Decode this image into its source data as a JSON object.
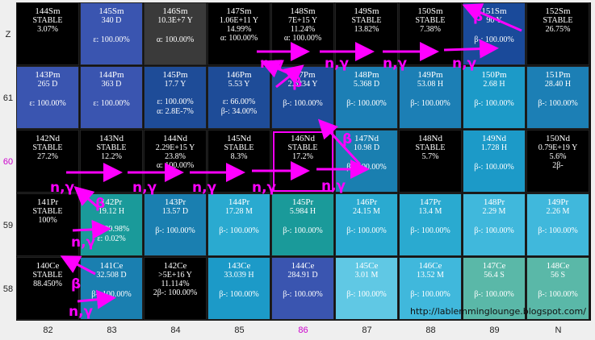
{
  "z_labels": [
    "Z",
    "61",
    "60",
    "59",
    "58"
  ],
  "n_labels": [
    "82",
    "83",
    "84",
    "85",
    "86",
    "87",
    "88",
    "89",
    "N"
  ],
  "url": "http://lablemminglounge.blogspot.com/",
  "colors": {
    "accent": "#ff00ff",
    "highlight_z": "#cc00cc"
  },
  "rows": [
    [
      {
        "name": "144Sm",
        "half": "STABLE",
        "extra": "3.07%",
        "decay": "",
        "bg": "#000000"
      },
      {
        "name": "145Sm",
        "half": "340 D",
        "extra": "",
        "decay": "ε: 100.00%",
        "bg": "#3a55b0"
      },
      {
        "name": "146Sm",
        "half": "10.3E+7 Y",
        "extra": "",
        "decay": "α: 100.00%",
        "bg": "#3a3a3a"
      },
      {
        "name": "147Sm",
        "half": "1.06E+11 Y",
        "extra": "14.99%",
        "decay": "α: 100.00%",
        "bg": "#000000"
      },
      {
        "name": "148Sm",
        "half": "7E+15 Y",
        "extra": "11.24%",
        "decay": "α: 100.00%",
        "bg": "#000000"
      },
      {
        "name": "149Sm",
        "half": "STABLE",
        "extra": "13.82%",
        "decay": "",
        "bg": "#000000"
      },
      {
        "name": "150Sm",
        "half": "STABLE",
        "extra": "7.38%",
        "decay": "",
        "bg": "#000000"
      },
      {
        "name": "151Sm",
        "half": "90 Y",
        "extra": "",
        "decay": "β-: 100.00%",
        "bg": "#1a4a9a"
      },
      {
        "name": "152Sm",
        "half": "STABLE",
        "extra": "26.75%",
        "decay": "",
        "bg": "#000000"
      }
    ],
    [
      {
        "name": "143Pm",
        "half": "265 D",
        "extra": "",
        "decay": "ε: 100.00%",
        "bg": "#3a55b0"
      },
      {
        "name": "144Pm",
        "half": "363 D",
        "extra": "",
        "decay": "ε: 100.00%",
        "bg": "#3a55b0"
      },
      {
        "name": "145Pm",
        "half": "17.7 Y",
        "extra": "",
        "decay": "ε: 100.00%",
        "decay2": "α: 2.8E-7%",
        "bg": "#1e4c98"
      },
      {
        "name": "146Pm",
        "half": "5.53 Y",
        "extra": "",
        "decay": "ε: 66.00%",
        "decay2": "β-: 34.00%",
        "bg": "#1e4c98"
      },
      {
        "name": "147Pm",
        "half": "2.6234 Y",
        "extra": "",
        "decay": "β-: 100.00%",
        "bg": "#1e4c98"
      },
      {
        "name": "148Pm",
        "half": "5.368 D",
        "extra": "",
        "decay": "β-: 100.00%",
        "bg": "#1c7fb5"
      },
      {
        "name": "149Pm",
        "half": "53.08 H",
        "extra": "",
        "decay": "β-: 100.00%",
        "bg": "#1c7fb5"
      },
      {
        "name": "150Pm",
        "half": "2.68 H",
        "extra": "",
        "decay": "β-: 100.00%",
        "bg": "#1c9ac8"
      },
      {
        "name": "151Pm",
        "half": "28.40 H",
        "extra": "",
        "decay": "β-: 100.00%",
        "bg": "#1c7fb5"
      }
    ],
    [
      {
        "name": "142Nd",
        "half": "STABLE",
        "extra": "27.2%",
        "decay": "",
        "bg": "#000000"
      },
      {
        "name": "143Nd",
        "half": "STABLE",
        "extra": "12.2%",
        "decay": "",
        "bg": "#000000"
      },
      {
        "name": "144Nd",
        "half": "2.29E+15 Y",
        "extra": "23.8%",
        "decay": "α: 100.00%",
        "bg": "#000000"
      },
      {
        "name": "145Nd",
        "half": "STABLE",
        "extra": "8.3%",
        "decay": "",
        "bg": "#000000"
      },
      {
        "name": "146Nd",
        "half": "STABLE",
        "extra": "17.2%",
        "decay": "",
        "bg": "#000000"
      },
      {
        "name": "147Nd",
        "half": "10.98 D",
        "extra": "",
        "decay": "β-: 100.00%",
        "bg": "#1a7fb0"
      },
      {
        "name": "148Nd",
        "half": "STABLE",
        "extra": "5.7%",
        "decay": "",
        "bg": "#000000"
      },
      {
        "name": "149Nd",
        "half": "1.728 H",
        "extra": "",
        "decay": "β-: 100.00%",
        "bg": "#1c9ac8"
      },
      {
        "name": "150Nd",
        "half": "0.79E+19 Y",
        "extra": "5.6%",
        "decay": "2β-",
        "bg": "#000000"
      }
    ],
    [
      {
        "name": "141Pr",
        "half": "STABLE",
        "extra": "100%",
        "decay": "",
        "bg": "#000000"
      },
      {
        "name": "142Pr",
        "half": "19.12 H",
        "extra": "",
        "decay": "β-: 99.98%",
        "decay2": "ε: 0.02%",
        "bg": "#1a9a9a"
      },
      {
        "name": "143Pr",
        "half": "13.57 D",
        "extra": "",
        "decay": "β-: 100.00%",
        "bg": "#1a7fb0"
      },
      {
        "name": "144Pr",
        "half": "17.28 M",
        "extra": "",
        "decay": "β-: 100.00%",
        "bg": "#2aaad0"
      },
      {
        "name": "145Pr",
        "half": "5.984 H",
        "extra": "",
        "decay": "β-: 100.00%",
        "bg": "#1a9a9a"
      },
      {
        "name": "146Pr",
        "half": "24.15 M",
        "extra": "",
        "decay": "β-: 100.00%",
        "bg": "#2aaad0"
      },
      {
        "name": "147Pr",
        "half": "13.4 M",
        "extra": "",
        "decay": "β-: 100.00%",
        "bg": "#2aaad0"
      },
      {
        "name": "148Pr",
        "half": "2.29 M",
        "extra": "",
        "decay": "β-: 100.00%",
        "bg": "#40b8dc"
      },
      {
        "name": "149Pr",
        "half": "2.26 M",
        "extra": "",
        "decay": "β-: 100.00%",
        "bg": "#40b8dc"
      }
    ],
    [
      {
        "name": "140Ce",
        "half": "STABLE",
        "extra": "88.450%",
        "decay": "",
        "bg": "#000000"
      },
      {
        "name": "141Ce",
        "half": "32.508 D",
        "extra": "",
        "decay": "β-: 100.00%",
        "bg": "#1a7fb0"
      },
      {
        "name": "142Ce",
        "half": ">5E+16 Y",
        "extra": "11.114%",
        "decay": "2β-: 100.00%",
        "bg": "#000000"
      },
      {
        "name": "143Ce",
        "half": "33.039 H",
        "extra": "",
        "decay": "β-: 100.00%",
        "bg": "#1c9ac8"
      },
      {
        "name": "144Ce",
        "half": "284.91 D",
        "extra": "",
        "decay": "β-: 100.00%",
        "bg": "#3a55b0"
      },
      {
        "name": "145Ce",
        "half": "3.01 M",
        "extra": "",
        "decay": "β-: 100.00%",
        "bg": "#60c8e4"
      },
      {
        "name": "146Ce",
        "half": "13.52 M",
        "extra": "",
        "decay": "β-: 100.00%",
        "bg": "#40b8dc"
      },
      {
        "name": "147Ce",
        "half": "56.4 S",
        "extra": "",
        "decay": "β-: 100.00%",
        "bg": "#5ab8a8"
      },
      {
        "name": "148Ce",
        "half": "56 S",
        "extra": "",
        "decay": "β-: 100.00%",
        "bg": "#5ab8a8"
      }
    ]
  ],
  "annotations": {
    "ng": "n,γ",
    "beta": "β"
  }
}
